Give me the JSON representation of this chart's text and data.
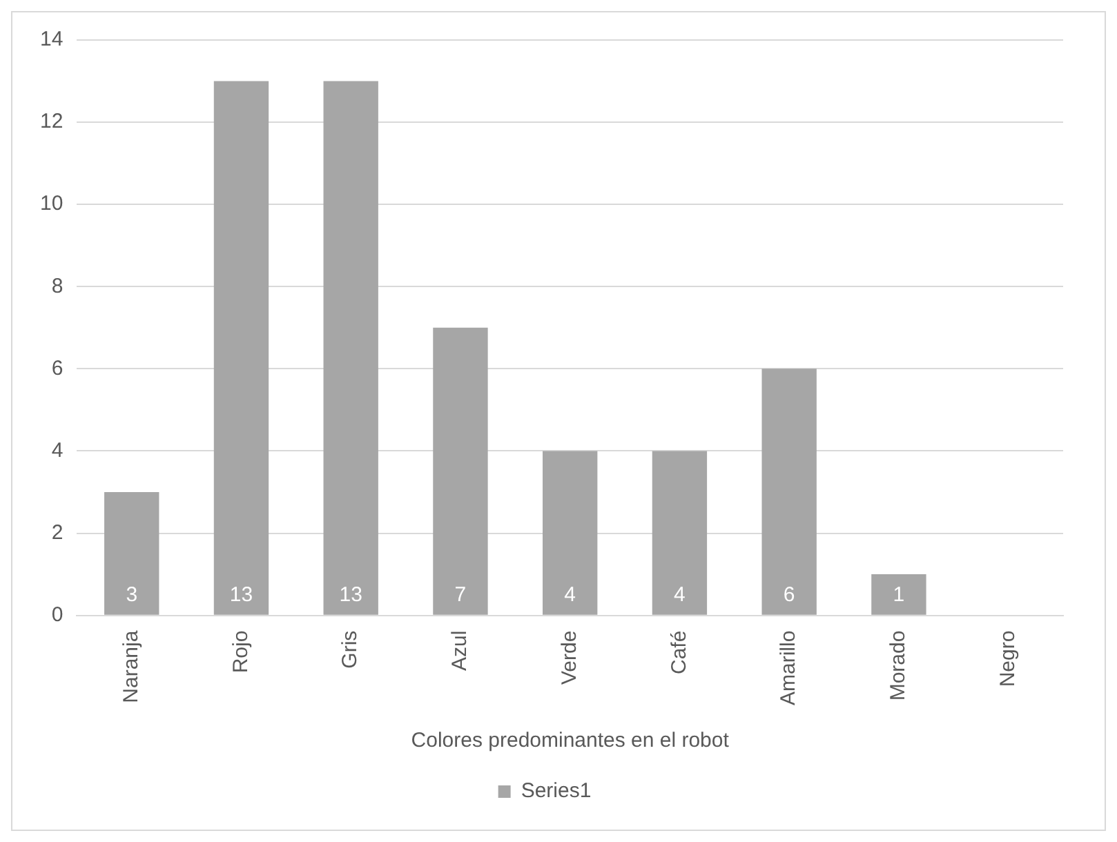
{
  "chart_data": {
    "type": "bar",
    "categories": [
      "Naranja",
      "Rojo",
      "Gris",
      "Azul",
      "Verde",
      "Café",
      "Amarillo",
      "Morado",
      "Negro"
    ],
    "series": [
      {
        "name": "Series1",
        "color": "#a6a6a6",
        "values": [
          3,
          13,
          13,
          7,
          4,
          4,
          6,
          1,
          null
        ]
      }
    ],
    "value_labels": [
      "3",
      "13",
      "13",
      "7",
      "4",
      "4",
      "6",
      "1",
      null
    ],
    "xlabel": "Colores predominantes en el robot",
    "ylim": [
      0,
      14
    ],
    "yticks": [
      0,
      2,
      4,
      6,
      8,
      10,
      12,
      14
    ],
    "grid": "y",
    "legend": "bottom"
  }
}
